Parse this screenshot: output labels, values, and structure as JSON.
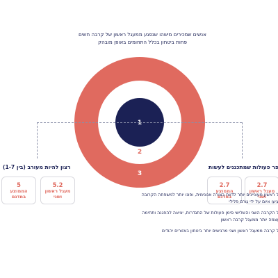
{
  "header": {
    "line1": "אנשים שמכירים מישהו שנפגע ממעגל ראשון של קרבה חשים",
    "line2": "פחות ביטחון בכלל התחומים באופן מובהק"
  },
  "rings": [
    {
      "label": "1",
      "color": "#1b2155",
      "text_color": "#ffffff"
    },
    {
      "label": "2",
      "color": "#ffffff",
      "text_color": "#e06a5f"
    },
    {
      "label": "3",
      "color": "#e06a5f",
      "text_color": "#ffffff"
    }
  ],
  "left_panel": {
    "title": "רצון להיות מעורב (בין 1-7)",
    "boxes": [
      {
        "value": "5.2",
        "line1": "מעגל ראשון",
        "line2": "ושני"
      },
      {
        "value": "5",
        "line1": "הממוצע",
        "line2": "במדגם"
      }
    ]
  },
  "right_panel": {
    "title": "מספר פעולות שמתכננים לעשות",
    "boxes": [
      {
        "value": "2.7",
        "line1": "מעגל ראשון",
        "line2": "ושני"
      },
      {
        "value": "2.7",
        "line1": "הממוצע",
        "line2": "במדגם"
      }
    ]
  },
  "notes": [
    "מעגל ראשון מעוניינים יותר לדווח בצורה אנונימית, ופונו יותר למשפחה הקרובה אם יגיעו איום על ידי גורם פלילי",
    "מעגל הקרבה השני והשלישי סימן פעולות של התגדרות, יציאה להפגנה ותחימה על עצמה יותר ממעגל קרבה ראשון",
    "מעגל קרבה ממעגל ראשון ושני מרגישים יותר ביטחון באזורים יהודים"
  ],
  "colors": {
    "navy": "#1b2155",
    "coral": "#e06a5f"
  }
}
